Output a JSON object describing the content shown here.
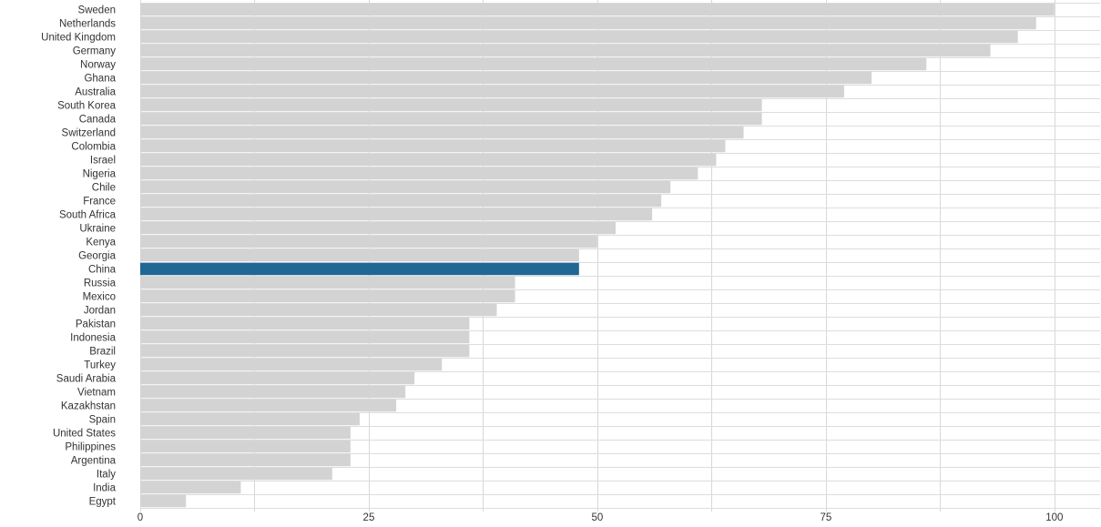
{
  "chart_data": {
    "type": "bar",
    "orientation": "horizontal",
    "title": "",
    "xlabel": "",
    "ylabel": "",
    "xlim": [
      0,
      105
    ],
    "xticks": [
      0,
      25,
      50,
      75,
      100
    ],
    "grid": true,
    "highlight_category": "China",
    "colors": {
      "default": "#d3d3d3",
      "highlight": "#1f6795"
    },
    "categories": [
      "Sweden",
      "Netherlands",
      "United Kingdom",
      "Germany",
      "Norway",
      "Ghana",
      "Australia",
      "South Korea",
      "Canada",
      "Switzerland",
      "Colombia",
      "Israel",
      "Nigeria",
      "Chile",
      "France",
      "South Africa",
      "Ukraine",
      "Kenya",
      "Georgia",
      "China",
      "Russia",
      "Mexico",
      "Jordan",
      "Pakistan",
      "Indonesia",
      "Brazil",
      "Turkey",
      "Saudi Arabia",
      "Vietnam",
      "Kazakhstan",
      "Spain",
      "United States",
      "Philippines",
      "Argentina",
      "Italy",
      "India",
      "Egypt"
    ],
    "values": [
      100,
      98,
      96,
      93,
      86,
      80,
      77,
      68,
      68,
      66,
      64,
      63,
      61,
      58,
      57,
      56,
      52,
      50,
      48,
      48,
      41,
      41,
      39,
      36,
      36,
      36,
      33,
      30,
      29,
      28,
      24,
      23,
      23,
      23,
      21,
      11,
      5
    ]
  }
}
